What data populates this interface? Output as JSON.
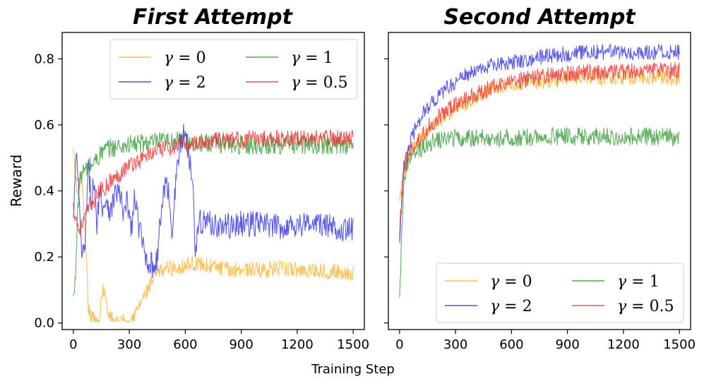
{
  "figure": {
    "xlabel": "Training Step",
    "ylabel": "Reward"
  },
  "chart_data": [
    {
      "type": "line",
      "title": "First Attempt",
      "xlabel": "Training Step",
      "ylabel": "Reward",
      "xlim": [
        -60,
        1560
      ],
      "ylim": [
        -0.02,
        0.88
      ],
      "xticks": [
        0,
        300,
        600,
        900,
        1200,
        1500
      ],
      "yticks": [
        0.0,
        0.2,
        0.4,
        0.6,
        0.8
      ],
      "legend_location": "top-right",
      "series": [
        {
          "name": "γ = 0",
          "symbol": "γ",
          "value_label": "0",
          "color": "#f5b431",
          "x": [
            0,
            10,
            25,
            40,
            55,
            70,
            80,
            90,
            100,
            120,
            140,
            160,
            175,
            190,
            210,
            240,
            270,
            300,
            330,
            360,
            390,
            420,
            450,
            480,
            510,
            540,
            570,
            600,
            630,
            660,
            700,
            750,
            800,
            850,
            900,
            1000,
            1100,
            1200,
            1300,
            1400,
            1500
          ],
          "values": [
            0.52,
            0.45,
            0.38,
            0.45,
            0.35,
            0.18,
            0.05,
            0.02,
            0.015,
            0.01,
            0.02,
            0.11,
            0.06,
            0.02,
            0.01,
            0.008,
            0.005,
            0.01,
            0.025,
            0.06,
            0.09,
            0.12,
            0.15,
            0.16,
            0.17,
            0.165,
            0.17,
            0.175,
            0.18,
            0.18,
            0.175,
            0.17,
            0.165,
            0.16,
            0.165,
            0.16,
            0.165,
            0.16,
            0.16,
            0.155,
            0.15
          ]
        },
        {
          "name": "γ = 1",
          "symbol": "γ",
          "value_label": "1",
          "color": "#3a9a3a",
          "x": [
            0,
            10,
            20,
            30,
            40,
            60,
            80,
            100,
            130,
            160,
            200,
            250,
            300,
            400,
            500,
            600,
            700,
            800,
            900,
            1000,
            1100,
            1200,
            1300,
            1400,
            1500
          ],
          "values": [
            0.07,
            0.12,
            0.3,
            0.4,
            0.45,
            0.46,
            0.47,
            0.48,
            0.5,
            0.52,
            0.53,
            0.535,
            0.54,
            0.545,
            0.55,
            0.55,
            0.545,
            0.545,
            0.54,
            0.54,
            0.54,
            0.54,
            0.54,
            0.54,
            0.54
          ]
        },
        {
          "name": "γ = 2",
          "symbol": "γ",
          "value_label": "2",
          "color": "#3333dd",
          "x": [
            0,
            10,
            20,
            30,
            40,
            50,
            60,
            70,
            80,
            95,
            110,
            125,
            140,
            160,
            180,
            200,
            225,
            250,
            270,
            290,
            310,
            330,
            350,
            370,
            390,
            410,
            430,
            450,
            470,
            490,
            510,
            530,
            560,
            580,
            600,
            620,
            640,
            655,
            670,
            700,
            750,
            800,
            900,
            1000,
            1100,
            1200,
            1300,
            1400,
            1500
          ],
          "values": [
            0.3,
            0.45,
            0.5,
            0.38,
            0.24,
            0.2,
            0.22,
            0.32,
            0.47,
            0.38,
            0.42,
            0.3,
            0.4,
            0.35,
            0.38,
            0.33,
            0.4,
            0.39,
            0.32,
            0.37,
            0.28,
            0.38,
            0.3,
            0.24,
            0.2,
            0.18,
            0.17,
            0.2,
            0.33,
            0.42,
            0.4,
            0.28,
            0.5,
            0.55,
            0.59,
            0.5,
            0.46,
            0.2,
            0.3,
            0.31,
            0.3,
            0.29,
            0.3,
            0.3,
            0.29,
            0.3,
            0.3,
            0.29,
            0.28
          ]
        },
        {
          "name": "γ = 0.5",
          "symbol": "γ",
          "value_label": "0.5",
          "color": "#e83232",
          "x": [
            0,
            15,
            30,
            50,
            70,
            90,
            110,
            140,
            170,
            200,
            230,
            260,
            300,
            350,
            400,
            450,
            500,
            550,
            600,
            700,
            800,
            900,
            1000,
            1100,
            1200,
            1300,
            1400,
            1500
          ],
          "values": [
            0.35,
            0.32,
            0.28,
            0.3,
            0.33,
            0.36,
            0.37,
            0.4,
            0.41,
            0.43,
            0.44,
            0.46,
            0.48,
            0.49,
            0.51,
            0.52,
            0.53,
            0.535,
            0.54,
            0.55,
            0.555,
            0.555,
            0.56,
            0.56,
            0.56,
            0.56,
            0.56,
            0.56
          ]
        }
      ]
    },
    {
      "type": "line",
      "title": "Second Attempt",
      "xlabel": "Training Step",
      "ylim": [
        -0.02,
        0.88
      ],
      "xlim": [
        -60,
        1560
      ],
      "xticks": [
        0,
        300,
        600,
        900,
        1200,
        1500
      ],
      "yticks": [
        0.0,
        0.2,
        0.4,
        0.6,
        0.8
      ],
      "legend_location": "bottom-right",
      "series": [
        {
          "name": "γ = 0",
          "symbol": "γ",
          "value_label": "0",
          "color": "#f5b431",
          "x": [
            0,
            10,
            20,
            30,
            50,
            70,
            100,
            150,
            200,
            250,
            300,
            400,
            500,
            600,
            700,
            800,
            900,
            1000,
            1100,
            1200,
            1300,
            1400,
            1500
          ],
          "values": [
            0.39,
            0.4,
            0.45,
            0.49,
            0.52,
            0.53,
            0.55,
            0.58,
            0.61,
            0.63,
            0.65,
            0.68,
            0.71,
            0.72,
            0.73,
            0.735,
            0.74,
            0.745,
            0.745,
            0.745,
            0.745,
            0.745,
            0.74
          ]
        },
        {
          "name": "γ = 1",
          "symbol": "γ",
          "value_label": "1",
          "color": "#3a9a3a",
          "x": [
            0,
            8,
            16,
            25,
            40,
            60,
            80,
            100,
            140,
            180,
            220,
            300,
            400,
            500,
            600,
            700,
            800,
            900,
            1000,
            1100,
            1200,
            1300,
            1400,
            1500
          ],
          "values": [
            0.1,
            0.2,
            0.35,
            0.43,
            0.48,
            0.5,
            0.51,
            0.52,
            0.54,
            0.55,
            0.555,
            0.56,
            0.56,
            0.56,
            0.56,
            0.56,
            0.565,
            0.565,
            0.565,
            0.565,
            0.565,
            0.565,
            0.565,
            0.56
          ]
        },
        {
          "name": "γ = 2",
          "symbol": "γ",
          "value_label": "2",
          "color": "#3333dd",
          "x": [
            0,
            10,
            20,
            30,
            45,
            60,
            80,
            100,
            130,
            160,
            200,
            250,
            300,
            350,
            400,
            500,
            600,
            700,
            800,
            900,
            1000,
            1100,
            1200,
            1300,
            1400,
            1500
          ],
          "values": [
            0.26,
            0.35,
            0.45,
            0.5,
            0.53,
            0.55,
            0.58,
            0.61,
            0.64,
            0.66,
            0.68,
            0.71,
            0.73,
            0.75,
            0.76,
            0.78,
            0.79,
            0.8,
            0.81,
            0.815,
            0.82,
            0.82,
            0.82,
            0.82,
            0.82,
            0.82
          ]
        },
        {
          "name": "γ = 0.5",
          "symbol": "γ",
          "value_label": "0.5",
          "color": "#e83232",
          "x": [
            0,
            10,
            20,
            30,
            50,
            70,
            100,
            150,
            200,
            250,
            300,
            400,
            500,
            600,
            700,
            800,
            900,
            1000,
            1100,
            1200,
            1300,
            1400,
            1500
          ],
          "values": [
            0.27,
            0.36,
            0.44,
            0.48,
            0.51,
            0.53,
            0.55,
            0.59,
            0.62,
            0.64,
            0.66,
            0.69,
            0.715,
            0.73,
            0.74,
            0.75,
            0.755,
            0.76,
            0.76,
            0.76,
            0.765,
            0.765,
            0.765
          ]
        }
      ]
    }
  ]
}
